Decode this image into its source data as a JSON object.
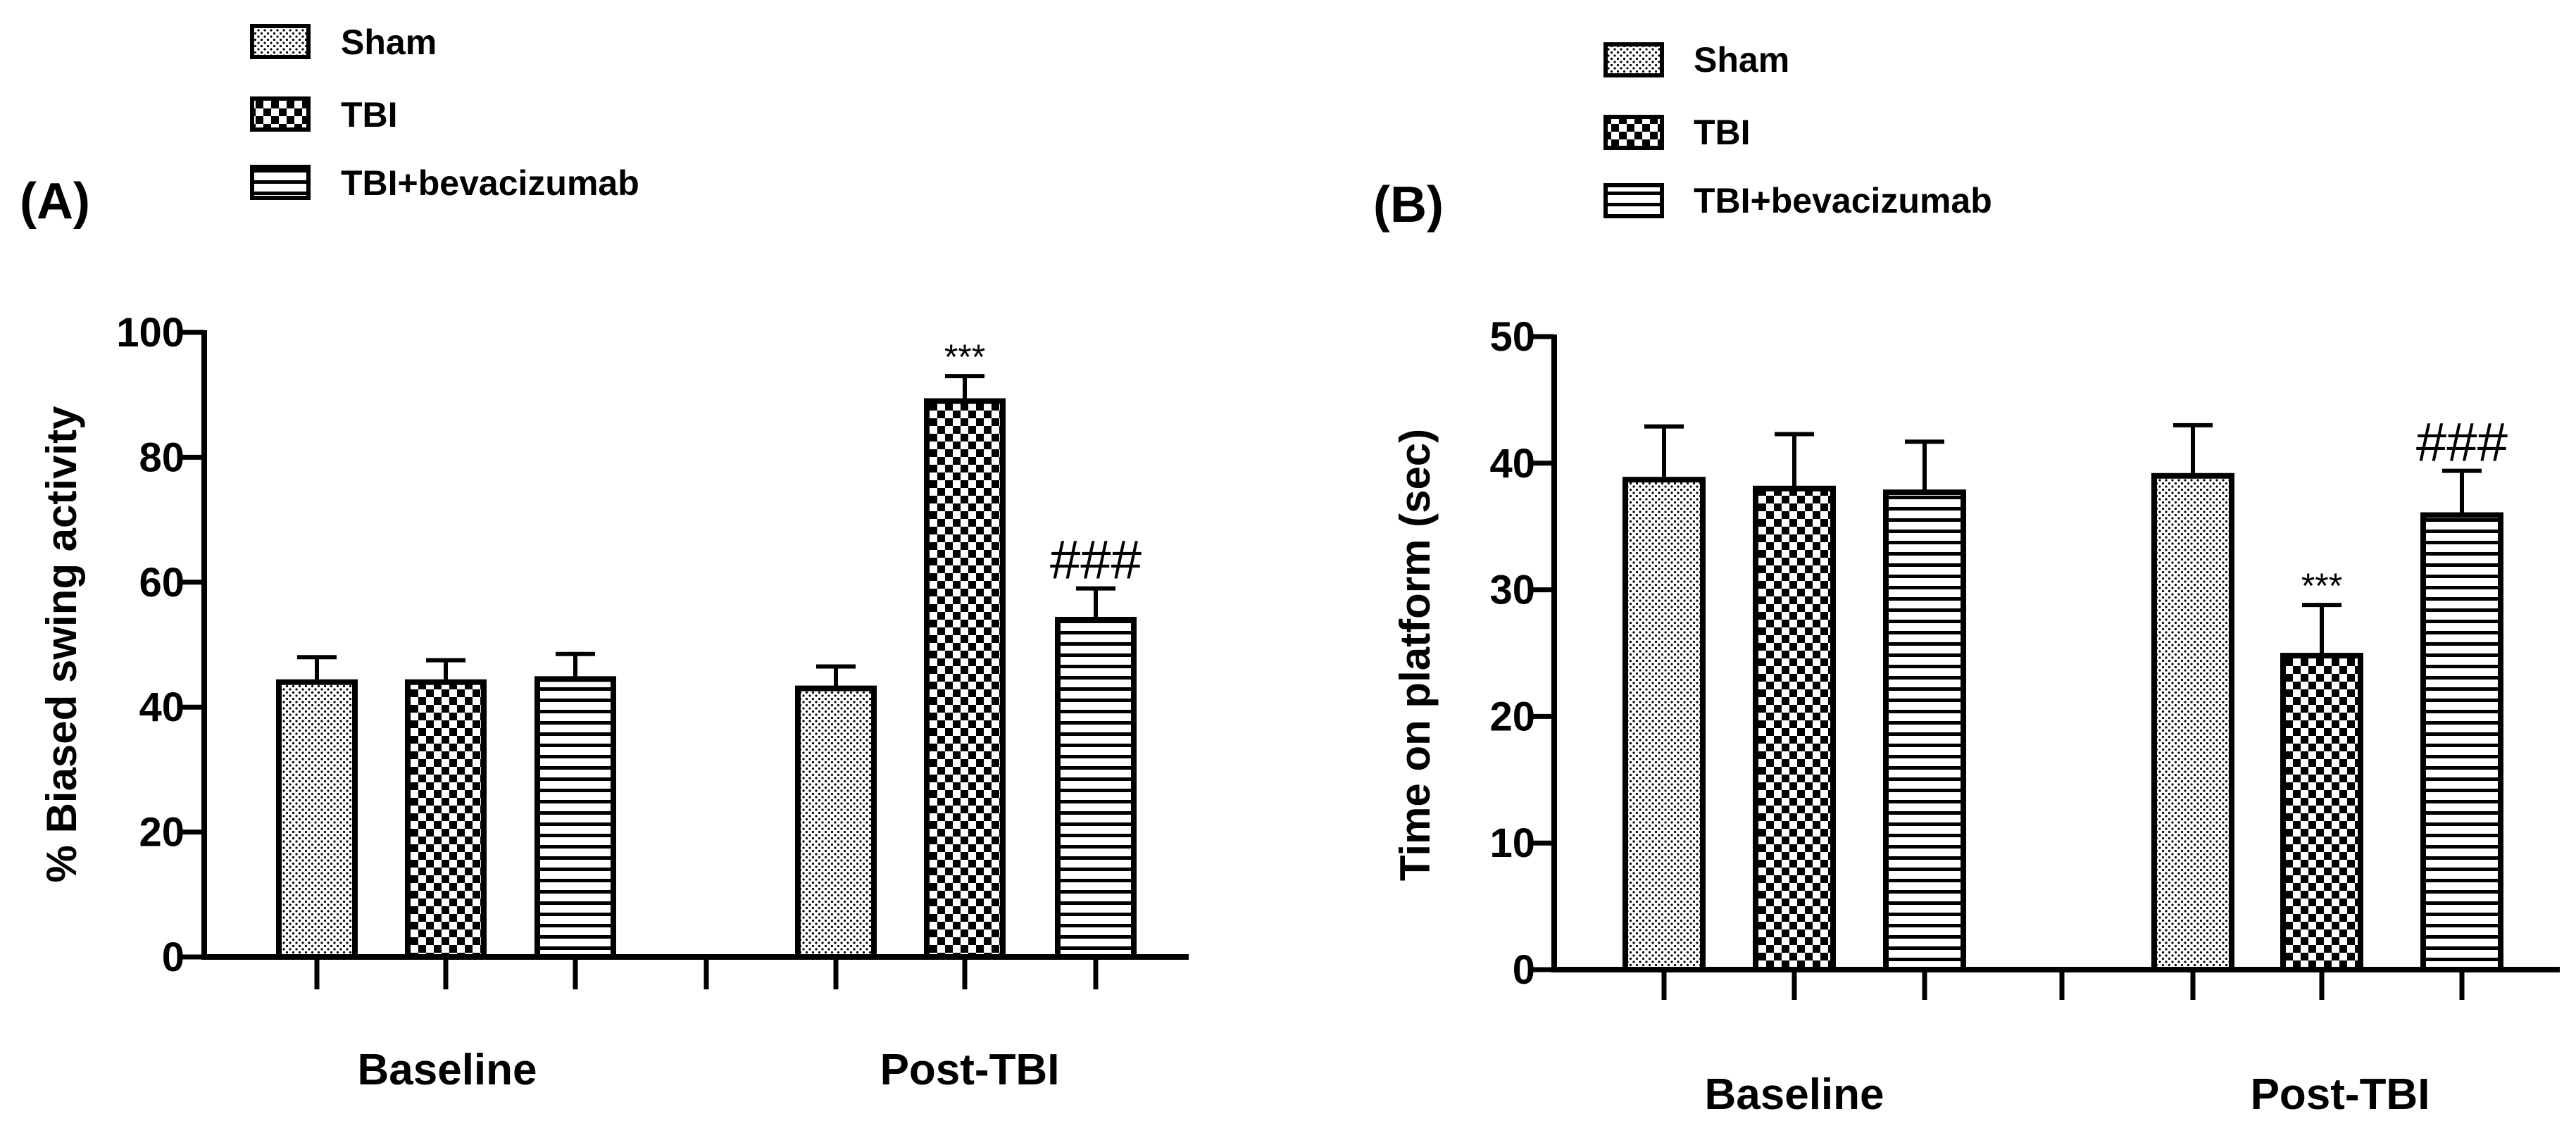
{
  "chart_data": [
    {
      "panel_label": "(A)",
      "type": "bar",
      "title": "",
      "xlabel": "",
      "ylabel": "% Biased swing activity",
      "ylim": [
        0,
        100
      ],
      "yticks": [
        "0",
        "20",
        "40",
        "60",
        "80",
        "100"
      ],
      "groups": [
        "Baseline",
        "Post-TBI"
      ],
      "legend": [
        "Sham",
        "TBI",
        "TBI+bevacizumab"
      ],
      "series": [
        {
          "name": "Sham",
          "values": [
            44,
            43
          ],
          "errors": [
            4,
            3.5
          ]
        },
        {
          "name": "TBI",
          "values": [
            44,
            89
          ],
          "errors": [
            3.5,
            4
          ]
        },
        {
          "name": "TBI+bevacizumab",
          "values": [
            44.5,
            54
          ],
          "errors": [
            4,
            5
          ]
        }
      ],
      "annotations": [
        {
          "group": 1,
          "series": 1,
          "text": "***"
        },
        {
          "group": 1,
          "series": 2,
          "text": "###"
        }
      ]
    },
    {
      "panel_label": "(B)",
      "type": "bar",
      "title": "",
      "xlabel": "",
      "ylabel": "Time on platform (sec)",
      "ylim": [
        0,
        50
      ],
      "yticks": [
        "0",
        "10",
        "20",
        "30",
        "40",
        "50"
      ],
      "groups": [
        "Baseline",
        "Post-TBI"
      ],
      "legend": [
        "Sham",
        "TBI",
        "TBI+bevacizumab"
      ],
      "series": [
        {
          "name": "Sham",
          "values": [
            38.7,
            39
          ],
          "errors": [
            4.2,
            4
          ]
        },
        {
          "name": "TBI",
          "values": [
            38,
            24.8
          ],
          "errors": [
            4.3,
            4
          ]
        },
        {
          "name": "TBI+bevacizumab",
          "values": [
            37.7,
            35.9
          ],
          "errors": [
            4,
            3.5
          ]
        }
      ],
      "annotations": [
        {
          "group": 1,
          "series": 1,
          "text": "***"
        },
        {
          "group": 1,
          "series": 2,
          "text": "###"
        }
      ]
    }
  ]
}
